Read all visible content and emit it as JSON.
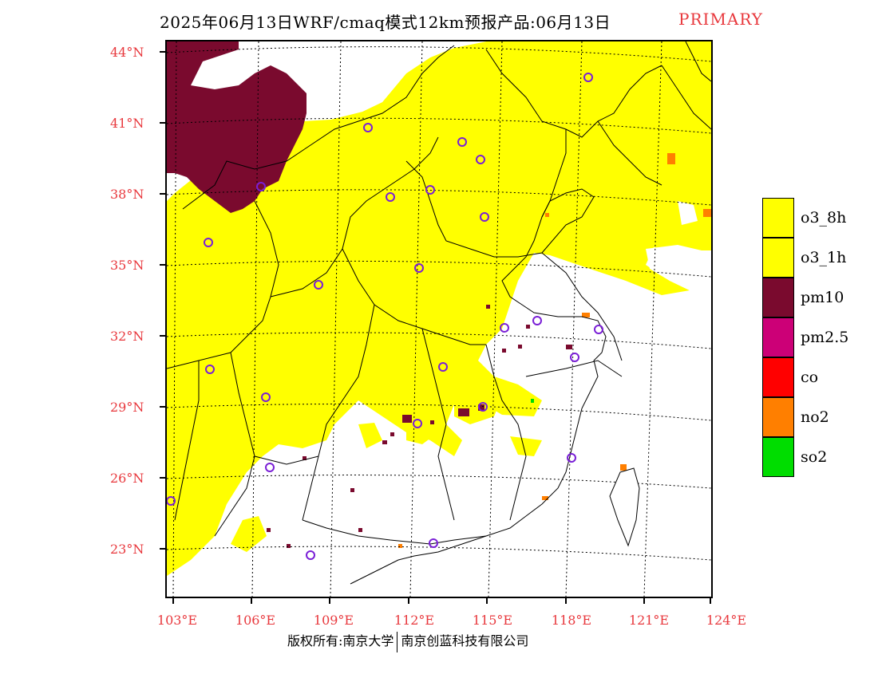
{
  "header": {
    "title": "2025年06月13日WRF/cmaq模式12km预报产品:06月13日",
    "tag": "PRIMARY"
  },
  "axes": {
    "lat_labels": [
      "44°N",
      "41°N",
      "38°N",
      "35°N",
      "32°N",
      "29°N",
      "26°N",
      "23°N"
    ],
    "lon_labels": [
      "103°E",
      "106°E",
      "109°E",
      "112°E",
      "115°E",
      "118°E",
      "121°E",
      "124°E"
    ]
  },
  "legend": {
    "items": [
      {
        "label": "o3_8h",
        "color": "#ffff00"
      },
      {
        "label": "o3_1h",
        "color": "#ffff00"
      },
      {
        "label": "pm10",
        "color": "#7a0a2e"
      },
      {
        "label": "pm2.5",
        "color": "#cc0077"
      },
      {
        "label": "co",
        "color": "#ff0000"
      },
      {
        "label": "no2",
        "color": "#ff7f00"
      },
      {
        "label": "so2",
        "color": "#00dd00"
      }
    ]
  },
  "footer": {
    "left": "版权所有:南京大学",
    "right": "南京创蓝科技有限公司"
  },
  "colors": {
    "axis_label": "#e8383d",
    "o3": "#ffff00",
    "pm10": "#7a0a2e",
    "no2": "#ff7f00",
    "station_marker": "#7a1fd6"
  }
}
